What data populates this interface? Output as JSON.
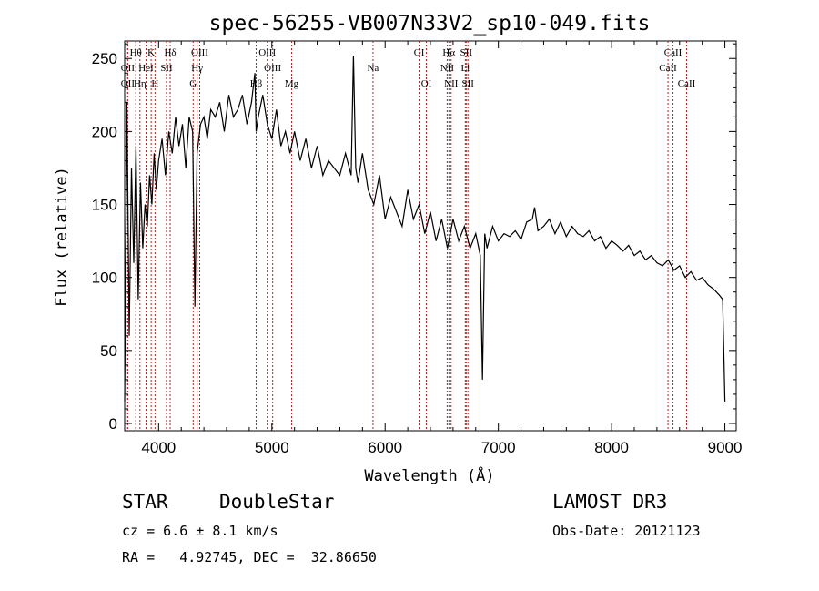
{
  "chart_data": {
    "type": "line",
    "title": "spec-56255-VB007N33V2_sp10-049.fits",
    "xlabel": "Wavelength (Å)",
    "ylabel": "Flux (relative)",
    "xlim": [
      3700,
      9100
    ],
    "ylim": [
      -5,
      262
    ],
    "xticks": [
      4000,
      5000,
      6000,
      7000,
      8000,
      9000
    ],
    "yticks": [
      0,
      50,
      100,
      150,
      200,
      250
    ],
    "series": [
      {
        "name": "flux",
        "x": [
          3700,
          3720,
          3740,
          3760,
          3780,
          3800,
          3820,
          3840,
          3860,
          3880,
          3900,
          3920,
          3940,
          3960,
          3980,
          4000,
          4030,
          4060,
          4090,
          4120,
          4150,
          4180,
          4210,
          4240,
          4270,
          4300,
          4320,
          4340,
          4370,
          4400,
          4430,
          4460,
          4500,
          4540,
          4580,
          4620,
          4660,
          4700,
          4740,
          4780,
          4820,
          4850,
          4861,
          4880,
          4920,
          4960,
          5000,
          5040,
          5080,
          5120,
          5160,
          5200,
          5250,
          5300,
          5350,
          5400,
          5450,
          5500,
          5550,
          5600,
          5650,
          5700,
          5720,
          5740,
          5760,
          5800,
          5850,
          5900,
          5950,
          6000,
          6050,
          6100,
          6150,
          6200,
          6250,
          6300,
          6350,
          6400,
          6450,
          6500,
          6550,
          6600,
          6650,
          6700,
          6750,
          6800,
          6840,
          6860,
          6880,
          6900,
          6950,
          7000,
          7050,
          7100,
          7150,
          7200,
          7250,
          7300,
          7320,
          7350,
          7400,
          7450,
          7500,
          7550,
          7600,
          7650,
          7700,
          7750,
          7800,
          7850,
          7900,
          7950,
          8000,
          8050,
          8100,
          8150,
          8200,
          8250,
          8300,
          8350,
          8400,
          8450,
          8500,
          8550,
          8600,
          8650,
          8700,
          8750,
          8800,
          8850,
          8900,
          8950,
          8980,
          9000
        ],
        "values": [
          15,
          220,
          60,
          175,
          110,
          190,
          85,
          165,
          120,
          150,
          135,
          170,
          150,
          185,
          160,
          180,
          195,
          170,
          200,
          185,
          210,
          190,
          205,
          175,
          210,
          200,
          80,
          185,
          205,
          210,
          195,
          215,
          210,
          220,
          200,
          225,
          210,
          215,
          225,
          205,
          220,
          240,
          200,
          210,
          225,
          205,
          195,
          215,
          190,
          200,
          185,
          200,
          180,
          195,
          175,
          190,
          170,
          180,
          175,
          170,
          185,
          170,
          252,
          175,
          165,
          185,
          160,
          150,
          170,
          140,
          155,
          145,
          135,
          160,
          140,
          150,
          130,
          145,
          125,
          140,
          120,
          140,
          125,
          135,
          120,
          130,
          115,
          30,
          130,
          120,
          135,
          125,
          130,
          128,
          132,
          126,
          138,
          140,
          148,
          132,
          135,
          140,
          130,
          138,
          128,
          135,
          130,
          128,
          132,
          125,
          128,
          120,
          125,
          122,
          118,
          122,
          115,
          118,
          112,
          115,
          110,
          108,
          112,
          105,
          108,
          100,
          104,
          98,
          100,
          95,
          92,
          88,
          85,
          15
        ]
      }
    ],
    "spectral_lines": [
      {
        "label": "Hθ",
        "x": 3798,
        "row": 1
      },
      {
        "label": "K",
        "x": 3934,
        "row": 1
      },
      {
        "label": "Hδ",
        "x": 4102,
        "row": 1
      },
      {
        "label": "OIII",
        "x": 4363,
        "row": 1
      },
      {
        "label": "OIII",
        "x": 4959,
        "row": 1
      },
      {
        "label": "OI",
        "x": 6300,
        "row": 1
      },
      {
        "label": "Hα",
        "x": 6563,
        "row": 1
      },
      {
        "label": "SII",
        "x": 6716,
        "row": 1
      },
      {
        "label": "CaII",
        "x": 8542,
        "row": 1
      },
      {
        "label": "OII",
        "x": 3727,
        "row": 2
      },
      {
        "label": "HeI",
        "x": 3889,
        "row": 2
      },
      {
        "label": "SII",
        "x": 4069,
        "row": 2
      },
      {
        "label": "Hγ",
        "x": 4340,
        "row": 2
      },
      {
        "label": "OIII",
        "x": 5007,
        "row": 2
      },
      {
        "label": "Na",
        "x": 5893,
        "row": 2
      },
      {
        "label": "NII",
        "x": 6548,
        "row": 2
      },
      {
        "label": "Li",
        "x": 6708,
        "row": 2
      },
      {
        "label": "CaII",
        "x": 8498,
        "row": 2
      },
      {
        "label": "OII",
        "x": 3727,
        "row": 3
      },
      {
        "label": "Hη",
        "x": 3835,
        "row": 3
      },
      {
        "label": "H",
        "x": 3968,
        "row": 3
      },
      {
        "label": "G",
        "x": 4305,
        "row": 3
      },
      {
        "label": "Hβ",
        "x": 4861,
        "row": 3
      },
      {
        "label": "Mg",
        "x": 5175,
        "row": 3
      },
      {
        "label": "OI",
        "x": 6364,
        "row": 3
      },
      {
        "label": "NII",
        "x": 6583,
        "row": 3
      },
      {
        "label": "SII",
        "x": 6731,
        "row": 3
      },
      {
        "label": "CaII",
        "x": 8662,
        "row": 3
      }
    ]
  },
  "info": {
    "class": "STAR",
    "subclass": "DoubleStar",
    "survey": "LAMOST DR3",
    "cz": "cz = 6.6 ± 8.1 km/s",
    "obs_date": "Obs-Date: 20121123",
    "radec": "RA =   4.92745, DEC =  32.86650"
  },
  "colors": {
    "spectrum": "#000000",
    "line_marker": "#b22222",
    "axes": "#000000"
  }
}
